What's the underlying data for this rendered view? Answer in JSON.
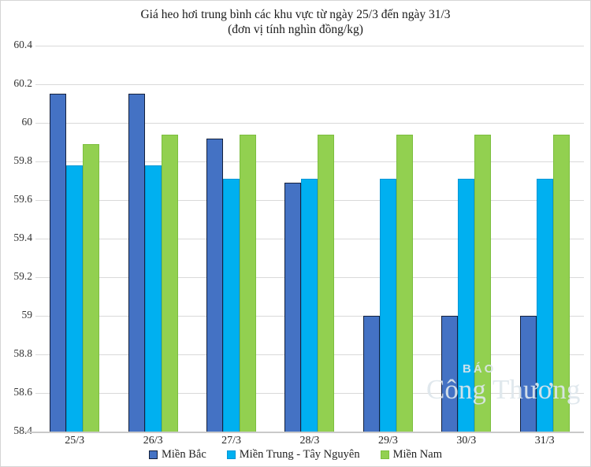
{
  "title": "Giá heo hơi trung bình các khu vực từ ngày 25/3 đến ngày 31/3",
  "subtitle": "(đơn vị tính nghìn đồng/kg)",
  "watermark": {
    "line1": "BÁO",
    "line2": "Công Thương"
  },
  "colors": {
    "gridline": "#d9d9d9",
    "axis_line": "#c9c9c9",
    "background": "#ffffff",
    "watermark": "#dde6ec"
  },
  "chart_data": {
    "type": "bar",
    "title": "Giá heo hơi trung bình các khu vực từ ngày 25/3 đến ngày 31/3",
    "subtitle": "(đơn vị tính nghìn đồng/kg)",
    "categories": [
      "25/3",
      "26/3",
      "27/3",
      "28/3",
      "29/3",
      "30/3",
      "31/3"
    ],
    "series": [
      {
        "name": "Miền Bắc",
        "color": "#4472c4",
        "border_color": "#14213d",
        "values": [
          60.15,
          60.15,
          59.92,
          59.69,
          59.0,
          59.0,
          59.0
        ]
      },
      {
        "name": "Miền Trung - Tây Nguyên",
        "color": "#00b0f0",
        "border_color": "#0096d6",
        "values": [
          59.78,
          59.78,
          59.71,
          59.71,
          59.71,
          59.71,
          59.71
        ]
      },
      {
        "name": "Miền Nam",
        "color": "#92d050",
        "border_color": "#7cbe3e",
        "values": [
          59.89,
          59.94,
          59.94,
          59.94,
          59.94,
          59.94,
          59.94
        ]
      }
    ],
    "ylim": [
      58.4,
      60.4
    ],
    "ytick_step": 0.2,
    "ytick_labels": [
      "60.4",
      "60.2",
      "60",
      "59.8",
      "59.6",
      "59.4",
      "59.2",
      "59",
      "58.8",
      "58.6",
      "58.4"
    ],
    "grid": true,
    "legend_position": "bottom",
    "bar_baseline": 58.4
  }
}
